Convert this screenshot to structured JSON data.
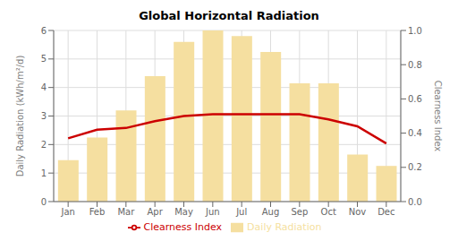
{
  "chart_data": {
    "type": "bar",
    "title": "Global Horizontal Radiation",
    "categories": [
      "Jan",
      "Feb",
      "Mar",
      "Apr",
      "May",
      "Jun",
      "Jul",
      "Aug",
      "Sep",
      "Oct",
      "Nov",
      "Dec"
    ],
    "series": [
      {
        "name": "Daily Radiation",
        "type": "bar",
        "color": "#F5DFA0",
        "values": [
          1.45,
          2.25,
          3.2,
          4.4,
          5.6,
          6.0,
          5.8,
          5.25,
          4.15,
          4.15,
          1.65,
          1.25
        ]
      },
      {
        "name": "Clearness Index",
        "type": "line",
        "axis": "y2",
        "color": "#CC0000",
        "values": [
          0.37,
          0.42,
          0.43,
          0.47,
          0.5,
          0.51,
          0.51,
          0.51,
          0.51,
          0.48,
          0.44,
          0.34
        ]
      }
    ],
    "ylabel": "Daily Radiation (kWh/m²/d)",
    "y2label": "Clearness Index",
    "ylim": [
      0,
      6
    ],
    "yticks": [
      0,
      1,
      2,
      3,
      4,
      5,
      6
    ],
    "y2lim": [
      0,
      1
    ],
    "y2ticks": [
      {
        "value": 0,
        "label": "0.0"
      },
      0.2,
      0.4,
      0.6,
      0.8,
      {
        "value": 1,
        "label": "1.0"
      }
    ],
    "grid": true,
    "legend": "bottom"
  }
}
